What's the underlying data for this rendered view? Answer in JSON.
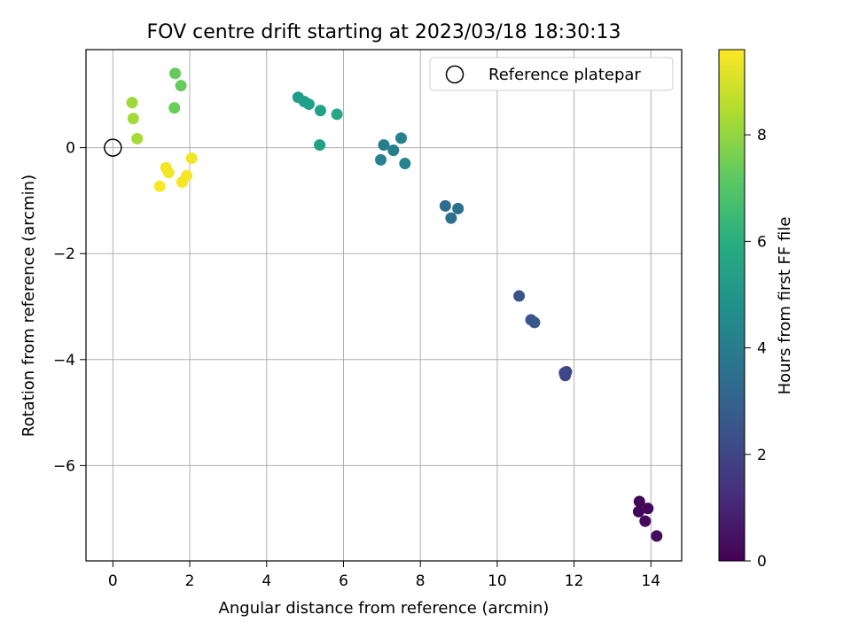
{
  "chart_data": {
    "type": "scatter",
    "title": "FOV centre drift starting at 2023/03/18 18:30:13",
    "xlabel": "Angular distance from reference (arcmin)",
    "ylabel": "Rotation from reference (arcmin)",
    "xlim": [
      -0.7,
      14.8
    ],
    "ylim": [
      -7.8,
      1.85
    ],
    "x_ticks": [
      0,
      2,
      4,
      6,
      8,
      10,
      12,
      14
    ],
    "y_ticks": [
      0,
      -2,
      -4,
      -6
    ],
    "grid": true,
    "legend": {
      "label": "Reference platepar",
      "position": "top-right"
    },
    "reference_point": {
      "x": 0,
      "y": 0
    },
    "colorbar": {
      "label": "Hours from first FF file",
      "range": [
        0,
        9.6
      ],
      "ticks": [
        0,
        2,
        4,
        6,
        8
      ],
      "colormap": "viridis"
    },
    "points": [
      {
        "x": 13.7,
        "y": -6.68,
        "hours": 0.1
      },
      {
        "x": 13.68,
        "y": -6.87,
        "hours": 0.15
      },
      {
        "x": 13.92,
        "y": -6.81,
        "hours": 0.2
      },
      {
        "x": 13.85,
        "y": -7.05,
        "hours": 0.25
      },
      {
        "x": 14.15,
        "y": -7.33,
        "hours": 0.3
      },
      {
        "x": 11.8,
        "y": -4.23,
        "hours": 1.95
      },
      {
        "x": 11.77,
        "y": -4.3,
        "hours": 2.0
      },
      {
        "x": 11.75,
        "y": -4.25,
        "hours": 2.05
      },
      {
        "x": 10.57,
        "y": -2.8,
        "hours": 2.5
      },
      {
        "x": 10.88,
        "y": -3.25,
        "hours": 2.55
      },
      {
        "x": 10.97,
        "y": -3.3,
        "hours": 2.6
      },
      {
        "x": 8.65,
        "y": -1.1,
        "hours": 3.4
      },
      {
        "x": 8.98,
        "y": -1.15,
        "hours": 3.45
      },
      {
        "x": 8.8,
        "y": -1.33,
        "hours": 3.5
      },
      {
        "x": 7.05,
        "y": 0.05,
        "hours": 4.1
      },
      {
        "x": 7.3,
        "y": -0.05,
        "hours": 4.15
      },
      {
        "x": 7.5,
        "y": 0.18,
        "hours": 4.2
      },
      {
        "x": 6.97,
        "y": -0.23,
        "hours": 4.25
      },
      {
        "x": 7.6,
        "y": -0.3,
        "hours": 4.3
      },
      {
        "x": 4.82,
        "y": 0.95,
        "hours": 5.3
      },
      {
        "x": 4.98,
        "y": 0.87,
        "hours": 5.35
      },
      {
        "x": 5.1,
        "y": 0.82,
        "hours": 5.4
      },
      {
        "x": 5.4,
        "y": 0.7,
        "hours": 5.5
      },
      {
        "x": 5.83,
        "y": 0.63,
        "hours": 5.7
      },
      {
        "x": 5.38,
        "y": 0.05,
        "hours": 5.5
      },
      {
        "x": 1.62,
        "y": 1.4,
        "hours": 7.3
      },
      {
        "x": 1.77,
        "y": 1.17,
        "hours": 7.35
      },
      {
        "x": 1.6,
        "y": 0.75,
        "hours": 7.4
      },
      {
        "x": 0.5,
        "y": 0.85,
        "hours": 8.2
      },
      {
        "x": 0.53,
        "y": 0.55,
        "hours": 8.25
      },
      {
        "x": 0.63,
        "y": 0.17,
        "hours": 8.3
      },
      {
        "x": 2.05,
        "y": -0.2,
        "hours": 9.4
      },
      {
        "x": 1.38,
        "y": -0.38,
        "hours": 9.45
      },
      {
        "x": 1.45,
        "y": -0.47,
        "hours": 9.45
      },
      {
        "x": 1.92,
        "y": -0.53,
        "hours": 9.5
      },
      {
        "x": 1.8,
        "y": -0.65,
        "hours": 9.5
      },
      {
        "x": 1.22,
        "y": -0.73,
        "hours": 9.55
      }
    ]
  }
}
